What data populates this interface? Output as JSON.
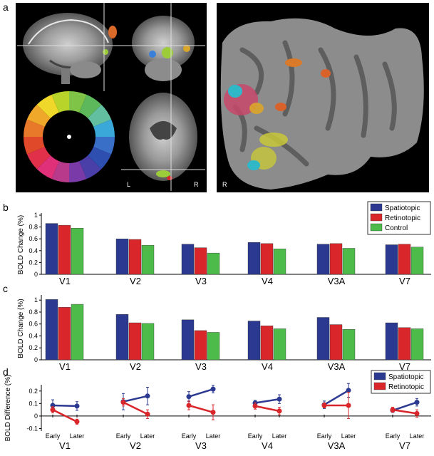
{
  "panels": {
    "a": "a",
    "b": "b",
    "c": "c",
    "d": "d"
  },
  "brain_images": {
    "axial_left_label": "L",
    "axial_right_label": "R",
    "flatmap_label": "R"
  },
  "colors": {
    "spatiotopic": "#2b3990",
    "retinotopic": "#d9262a",
    "control": "#4cbb4a"
  },
  "chart_data": [
    {
      "type": "bar",
      "id": "b",
      "ylabel": "BOLD Change (%)",
      "ylim": [
        0,
        1
      ],
      "yticks": [
        "0",
        "0.2",
        "0.4",
        "0.6",
        "0.8",
        "1"
      ],
      "categories": [
        "V1",
        "V2",
        "V3",
        "V4",
        "V3A",
        "V7"
      ],
      "legend": {
        "placement": "top-right"
      },
      "series": [
        {
          "name": "Spatiotopic",
          "values": [
            0.86,
            0.6,
            0.51,
            0.54,
            0.51,
            0.5
          ]
        },
        {
          "name": "Retinotopic",
          "values": [
            0.83,
            0.59,
            0.45,
            0.52,
            0.52,
            0.51
          ]
        },
        {
          "name": "Control",
          "values": [
            0.78,
            0.49,
            0.36,
            0.43,
            0.44,
            0.46
          ]
        }
      ]
    },
    {
      "type": "bar",
      "id": "c",
      "ylabel": "BOLD Change (%)",
      "ylim": [
        0,
        1.05
      ],
      "yticks": [
        "0",
        "0.2",
        "0.4",
        "0.6",
        "0.8",
        "1"
      ],
      "categories": [
        "V1",
        "V2",
        "V3",
        "V4",
        "V3A",
        "V7"
      ],
      "series": [
        {
          "name": "Spatiotopic",
          "values": [
            1.01,
            0.76,
            0.67,
            0.65,
            0.71,
            0.62
          ]
        },
        {
          "name": "Retinotopic",
          "values": [
            0.88,
            0.62,
            0.49,
            0.57,
            0.59,
            0.54
          ]
        },
        {
          "name": "Control",
          "values": [
            0.93,
            0.61,
            0.46,
            0.52,
            0.51,
            0.52
          ]
        }
      ]
    },
    {
      "type": "line",
      "id": "d",
      "ylabel": "BOLD Difference (%)",
      "ylim": [
        -0.12,
        0.25
      ],
      "yticks": [
        "-0.1",
        "0",
        "0.1",
        "0.2"
      ],
      "categories": [
        "V1",
        "V2",
        "V3",
        "V4",
        "V3A",
        "V7"
      ],
      "x": [
        "Early",
        "Later"
      ],
      "legend": {
        "placement": "top-right"
      },
      "series": [
        {
          "name": "Spatiotopic",
          "values": [
            [
              0.085,
              0.08
            ],
            [
              0.115,
              0.16
            ],
            [
              0.155,
              0.215
            ],
            [
              0.105,
              0.135
            ],
            [
              0.09,
              0.205
            ],
            [
              0.045,
              0.11
            ]
          ],
          "errors": [
            [
              0.045,
              0.035
            ],
            [
              0.065,
              0.07
            ],
            [
              0.04,
              0.03
            ],
            [
              0.02,
              0.035
            ],
            [
              0.03,
              0.055
            ],
            [
              0.015,
              0.03
            ]
          ]
        },
        {
          "name": "Retinotopic",
          "values": [
            [
              0.05,
              -0.045
            ],
            [
              0.11,
              0.015
            ],
            [
              0.085,
              0.03
            ],
            [
              0.08,
              0.04
            ],
            [
              0.085,
              0.085
            ],
            [
              0.05,
              0.02
            ]
          ],
          "errors": [
            [
              0.025,
              0.02
            ],
            [
              0.03,
              0.035
            ],
            [
              0.035,
              0.06
            ],
            [
              0.025,
              0.03
            ],
            [
              0.02,
              0.105
            ],
            [
              0.02,
              0.03
            ]
          ]
        }
      ]
    }
  ]
}
